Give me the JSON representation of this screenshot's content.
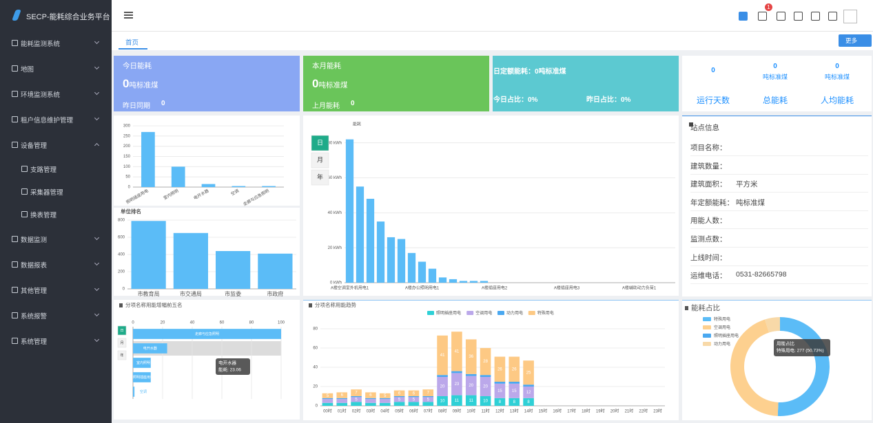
{
  "sidebar": {
    "title": "SECP-能耗综合业务平台",
    "menu": [
      {
        "label": "能耗监测系统"
      },
      {
        "label": "地图"
      },
      {
        "label": "环境监测系统"
      },
      {
        "label": "租户信息维护管理"
      },
      {
        "label": "设备管理",
        "children": [
          "支路管理",
          "采集器管理",
          "换表管理"
        ]
      },
      {
        "label": "数据监测"
      },
      {
        "label": "数据报表"
      },
      {
        "label": "其他管理"
      },
      {
        "label": "系统报警"
      },
      {
        "label": "系统管理"
      }
    ]
  },
  "topbar": {
    "notification_count": 1
  },
  "tabs": [
    "首页"
  ],
  "more_button": "更多",
  "summary_cards": [
    {
      "title": "今日能耗",
      "value": 0,
      "unit": "吨标准煤",
      "compare_label": "昨日同期",
      "compare_value": 0
    },
    {
      "title": "本月能耗",
      "value": 0,
      "unit": "吨标准煤",
      "compare_label": "上月能耗",
      "compare_value": 0
    },
    {
      "label": "日定额能耗：",
      "value": 0,
      "unit": "吨标准煤",
      "ratios": [
        {
          "label": "今日占比：",
          "value": "0%"
        },
        {
          "label": "昨日占比：",
          "value": "0%"
        }
      ]
    }
  ],
  "stats": [
    {
      "value": 0,
      "label": "运行天数"
    },
    {
      "value": 0,
      "unit": "吨标准煤",
      "label": "总能耗"
    },
    {
      "value": 0,
      "unit": "吨标准煤",
      "label": "人均能耗"
    }
  ],
  "station_info": {
    "title": "站点信息",
    "rows": [
      {
        "label": "项目名称："
      },
      {
        "label": "建筑数量："
      },
      {
        "label": "建筑面积：",
        "value": "平方米"
      },
      {
        "label": "年定额能耗：",
        "value": "吨标准煤"
      },
      {
        "label": "用能人数："
      },
      {
        "label": "监测点数："
      },
      {
        "label": "上线时间："
      },
      {
        "label": "运维电话：",
        "value": "0531-82665798"
      }
    ]
  },
  "chart_data": [
    {
      "type": "bar",
      "categories": [
        "照明插座用电",
        "室内照明",
        "电开水器",
        "空调",
        "走廊与应急照明"
      ],
      "values": [
        270,
        100,
        15,
        5,
        5
      ],
      "color": "#5bbcf7",
      "ylim": [
        0,
        300
      ],
      "yticks": [
        0,
        50,
        100,
        150,
        200,
        250,
        300
      ],
      "grid": true
    },
    {
      "type": "bar",
      "title": "单位排名",
      "categories": [
        "市教育局",
        "市交通局",
        "市监委",
        "市政府"
      ],
      "values": [
        790,
        650,
        440,
        410
      ],
      "color": "#5bbcf7",
      "ylim": [
        0,
        800
      ],
      "yticks": [
        0,
        200,
        400,
        600,
        800
      ],
      "grid": true
    },
    {
      "type": "bar",
      "y_label": "能耗",
      "periods": [
        "日",
        "月",
        "年"
      ],
      "categories": [
        "A楼空调室外机用电1",
        null,
        null,
        null,
        null,
        null,
        null,
        "A楼办公照明用电1",
        null,
        null,
        null,
        null,
        null,
        null,
        "A楼插座用电2",
        null,
        null,
        null,
        null,
        null,
        null,
        "A楼插座用电3",
        null,
        null,
        null,
        null,
        null,
        null,
        "A楼辅助动力负荷1",
        null,
        null,
        null
      ],
      "values": [
        82,
        55,
        48,
        35,
        26,
        25,
        17,
        12,
        8,
        3,
        2,
        1,
        1,
        1,
        0,
        0,
        0,
        0,
        0,
        0,
        0,
        0,
        0,
        0,
        0,
        0,
        0,
        0,
        0,
        0,
        0,
        0
      ],
      "color": "#5bbcf7",
      "ylim": [
        0,
        85
      ],
      "yticks": [
        {
          "value": 0,
          "label": "0 kWh"
        },
        {
          "value": 20,
          "label": "20 kWh"
        },
        {
          "value": 40,
          "label": "40 kWh"
        },
        {
          "value": 60,
          "label": "60 kWh"
        },
        {
          "value": 80,
          "label": "80 kWh"
        }
      ],
      "grid": true
    },
    {
      "type": "bar",
      "horizontal": true,
      "title": "分项名称用能增幅前五名",
      "periods": [
        "日",
        "月",
        "年"
      ],
      "categories": [
        "走廊与应急照明",
        "电开水器",
        "室内照明",
        "照明插座用电",
        "空调"
      ],
      "values": [
        100,
        23.06,
        12,
        12,
        1
      ],
      "color": "#5bbcf7",
      "xlim": [
        0,
        100
      ],
      "xticks": [
        0,
        20,
        40,
        60,
        80,
        100
      ],
      "grid": true,
      "tooltip": {
        "title": "电开水器",
        "text": "能耗: 23.06"
      }
    },
    {
      "type": "bar",
      "stacked": true,
      "title": "分项名称用能趋势",
      "categories": [
        "00时",
        "01时",
        "02时",
        "03时",
        "04时",
        "05时",
        "06时",
        "07时",
        "08时",
        "09时",
        "10时",
        "11时",
        "12时",
        "13时",
        "14时",
        "15时",
        "16时",
        "17时",
        "18时",
        "19时",
        "20时",
        "21时",
        "22时",
        "23时"
      ],
      "series": [
        {
          "name": "照明插座用电",
          "color": "#2fd0d6",
          "values": [
            3,
            3,
            4,
            3,
            3,
            4,
            4,
            4,
            10,
            11,
            11,
            10,
            8,
            8,
            8,
            0,
            0,
            0,
            0,
            0,
            0,
            0,
            0,
            0
          ]
        },
        {
          "name": "空调用电",
          "color": "#bba8ea",
          "values": [
            4,
            4,
            5,
            4,
            4,
            5,
            5,
            5,
            20,
            23,
            20,
            20,
            15,
            15,
            12,
            0,
            0,
            0,
            0,
            0,
            0,
            0,
            0,
            0
          ]
        },
        {
          "name": "动力用电",
          "color": "#4aa8f0",
          "values": [
            1,
            1,
            1,
            1,
            1,
            1,
            1,
            1,
            2,
            2,
            2,
            2,
            2,
            2,
            2,
            0,
            0,
            0,
            0,
            0,
            0,
            0,
            0,
            0
          ]
        },
        {
          "name": "特殊用电",
          "color": "#fdc984",
          "values": [
            5,
            6,
            7,
            6,
            5,
            6,
            6,
            7,
            41,
            41,
            36,
            28,
            26,
            26,
            25,
            0,
            0,
            0,
            0,
            0,
            0,
            0,
            0,
            0
          ]
        }
      ],
      "ylim": [
        0,
        80
      ],
      "yticks": [
        0,
        20,
        40,
        60,
        80
      ],
      "grid": true
    },
    {
      "type": "pie",
      "donut": true,
      "title": "能耗占比",
      "categories": [
        "特殊用电",
        "空调用电",
        "照明插座用电",
        "动力用电"
      ],
      "values": [
        277,
        242,
        0,
        27
      ],
      "colors": [
        "#5bbcf7",
        "#fdd08f",
        "#4aa8f0",
        "#f8d9a8"
      ],
      "tooltip": {
        "title": "用能占比",
        "text": "特殊用电: 277 (50.73%)"
      }
    }
  ]
}
